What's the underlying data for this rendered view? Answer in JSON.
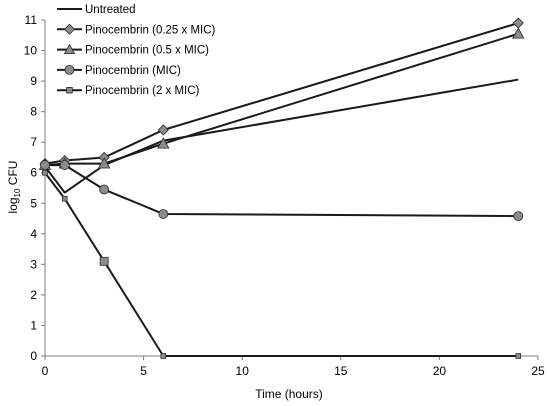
{
  "chart_data": {
    "type": "line",
    "title": "",
    "xlabel": "Time (hours)",
    "ylabel": {
      "prefix": "log",
      "subscript": "10",
      "suffix": " CFU"
    },
    "xlim": [
      0,
      25
    ],
    "ylim": [
      0,
      11
    ],
    "xticks": [
      0,
      5,
      10,
      15,
      20,
      25
    ],
    "yticks": [
      0,
      1,
      2,
      3,
      4,
      5,
      6,
      7,
      8,
      9,
      10,
      11
    ],
    "grid": false,
    "legend_position": "top-left",
    "line_color": "#1a1a1a",
    "marker_fill": "#8c8c8c",
    "series": [
      {
        "name": "Untreated",
        "marker": "none",
        "x": [
          0,
          1,
          3,
          6,
          24
        ],
        "y": [
          6.2,
          5.35,
          6.25,
          7.05,
          9.05
        ]
      },
      {
        "name": "Pinocembrin (0.25 x MIC)",
        "marker": "diamond",
        "x": [
          0,
          1,
          3,
          6,
          24
        ],
        "y": [
          6.3,
          6.4,
          6.5,
          7.4,
          10.9
        ]
      },
      {
        "name": "Pinocembrin (0.5 x MIC)",
        "marker": "triangle",
        "x": [
          0,
          1,
          3,
          6,
          24
        ],
        "y": [
          6.25,
          6.3,
          6.3,
          6.95,
          10.55
        ]
      },
      {
        "name": "Pinocembrin (MIC)",
        "marker": "circle",
        "x": [
          0,
          1,
          3,
          6,
          24
        ],
        "y": [
          6.25,
          6.25,
          5.45,
          4.65,
          4.58
        ]
      },
      {
        "name": "Pinocembrin (2 x MIC)",
        "marker": "square",
        "x": [
          0,
          1,
          3,
          6,
          24
        ],
        "y": [
          6.0,
          5.15,
          3.1,
          0.0,
          0.0
        ]
      }
    ]
  }
}
